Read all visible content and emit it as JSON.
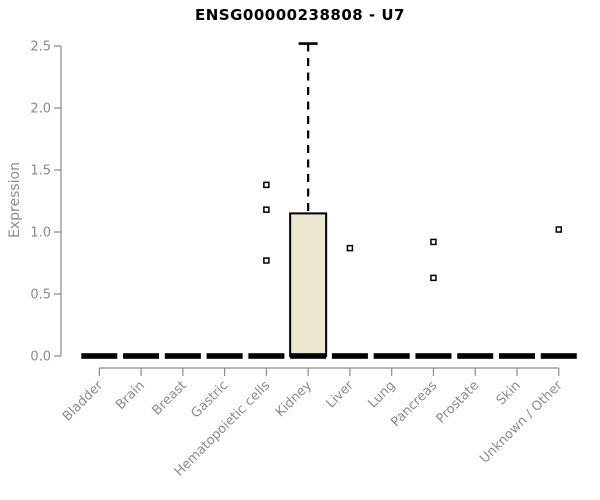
{
  "chart_data": {
    "type": "boxplot",
    "title": "ENSG00000238808 - U7",
    "xlabel": "",
    "ylabel": "Expression",
    "ylim": [
      0,
      2.5
    ],
    "yticks": [
      0,
      0.5,
      1,
      1.5,
      2,
      2.5
    ],
    "grid": false,
    "legend": false,
    "categories": [
      "Bladder",
      "Brain",
      "Breast",
      "Gastric",
      "Hematopoietic cells",
      "Kidney",
      "Liver",
      "Lung",
      "Pancreas",
      "Prostate",
      "Skin",
      "Unknown / Other"
    ],
    "boxes": [
      {
        "category": "Bladder",
        "whisker_low": 0,
        "q1": 0,
        "median": 0,
        "q3": 0,
        "whisker_high": 0,
        "outliers": []
      },
      {
        "category": "Brain",
        "whisker_low": 0,
        "q1": 0,
        "median": 0,
        "q3": 0,
        "whisker_high": 0,
        "outliers": []
      },
      {
        "category": "Breast",
        "whisker_low": 0,
        "q1": 0,
        "median": 0,
        "q3": 0,
        "whisker_high": 0,
        "outliers": []
      },
      {
        "category": "Gastric",
        "whisker_low": 0,
        "q1": 0,
        "median": 0,
        "q3": 0,
        "whisker_high": 0,
        "outliers": []
      },
      {
        "category": "Hematopoietic cells",
        "whisker_low": 0,
        "q1": 0,
        "median": 0,
        "q3": 0,
        "whisker_high": 0,
        "outliers": [
          1.38,
          1.18,
          0.77
        ]
      },
      {
        "category": "Kidney",
        "whisker_low": 0,
        "q1": 0,
        "median": 0,
        "q3": 1.15,
        "whisker_high": 2.52,
        "outliers": []
      },
      {
        "category": "Liver",
        "whisker_low": 0,
        "q1": 0,
        "median": 0,
        "q3": 0,
        "whisker_high": 0,
        "outliers": [
          0.87
        ]
      },
      {
        "category": "Lung",
        "whisker_low": 0,
        "q1": 0,
        "median": 0,
        "q3": 0,
        "whisker_high": 0,
        "outliers": []
      },
      {
        "category": "Pancreas",
        "whisker_low": 0,
        "q1": 0,
        "median": 0,
        "q3": 0,
        "whisker_high": 0,
        "outliers": [
          0.92,
          0.63
        ]
      },
      {
        "category": "Prostate",
        "whisker_low": 0,
        "q1": 0,
        "median": 0,
        "q3": 0,
        "whisker_high": 0,
        "outliers": []
      },
      {
        "category": "Skin",
        "whisker_low": 0,
        "q1": 0,
        "median": 0,
        "q3": 0,
        "whisker_high": 0,
        "outliers": []
      },
      {
        "category": "Unknown / Other",
        "whisker_low": 0,
        "q1": 0,
        "median": 0,
        "q3": 0,
        "whisker_high": 0,
        "outliers": [
          1.02
        ]
      }
    ],
    "colors": {
      "background": "#ffffff",
      "box_fill": "#ece7cf",
      "box_stroke": "#000000",
      "median": "#000000",
      "whisker": "#000000",
      "outlier": "#000000",
      "axis": "#8b8b8b",
      "tick_text": "#8b8b8b",
      "title_text": "#000000"
    }
  }
}
